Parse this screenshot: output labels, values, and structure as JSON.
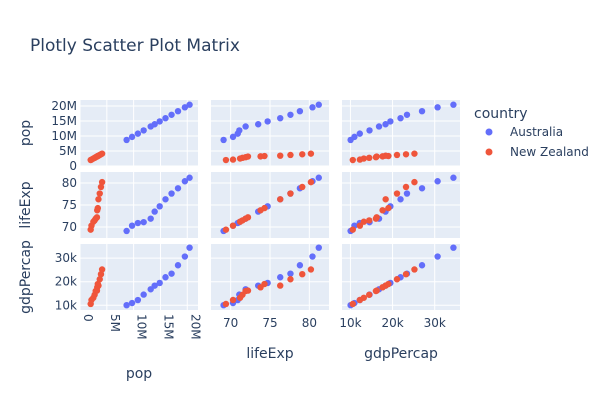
{
  "title": "Plotly Scatter Plot Matrix",
  "legend": {
    "title": "country",
    "placement": "top-right",
    "items": [
      {
        "name": "Australia",
        "color": "#636efa"
      },
      {
        "name": "New Zealand",
        "color": "#ef553b"
      }
    ]
  },
  "chart_data": {
    "type": "scatter",
    "title": "Plotly Scatter Plot Matrix",
    "dimensions": [
      {
        "name": "pop",
        "label": "pop",
        "range": [
          0,
          22000000
        ],
        "ticks": [
          {
            "v": 0,
            "t": "0"
          },
          {
            "v": 5000000,
            "t": "5M"
          },
          {
            "v": 10000000,
            "t": "10M"
          },
          {
            "v": 15000000,
            "t": "15M"
          },
          {
            "v": 20000000,
            "t": "20M"
          }
        ]
      },
      {
        "name": "lifeExp",
        "label": "lifeExp",
        "range": [
          67.5,
          82.5
        ],
        "ticks": [
          {
            "v": 70,
            "t": "70"
          },
          {
            "v": 75,
            "t": "75"
          },
          {
            "v": 80,
            "t": "80"
          }
        ]
      },
      {
        "name": "gdpPercap",
        "label": "gdpPercap",
        "range": [
          8000,
          36000
        ],
        "ticks": [
          {
            "v": 10000,
            "t": "10k"
          },
          {
            "v": 20000,
            "t": "20k"
          },
          {
            "v": 30000,
            "t": "30k"
          }
        ]
      }
    ],
    "series": [
      {
        "name": "Australia",
        "color": "#636efa",
        "pop": [
          8690000,
          9710000,
          10790000,
          11870000,
          13180000,
          13920000,
          14860000,
          15940000,
          17070000,
          18270000,
          19550000,
          20430000
        ],
        "lifeExp": [
          69.1,
          70.3,
          70.9,
          71.1,
          71.9,
          73.5,
          74.7,
          76.3,
          77.6,
          78.8,
          80.4,
          81.2
        ],
        "gdpPercap": [
          10040,
          10950,
          12220,
          14530,
          16790,
          18330,
          19480,
          21890,
          23420,
          26990,
          30690,
          34440
        ]
      },
      {
        "name": "New Zealand",
        "color": "#ef553b",
        "pop": [
          1990000,
          2140000,
          2490000,
          2730000,
          2930000,
          3160000,
          3210000,
          3320000,
          3440000,
          3680000,
          3910000,
          4120000
        ],
        "lifeExp": [
          69.4,
          70.3,
          71.2,
          71.5,
          71.9,
          72.2,
          73.8,
          74.3,
          76.3,
          77.6,
          79.1,
          80.2
        ],
        "gdpPercap": [
          10560,
          12250,
          13180,
          14460,
          16050,
          16230,
          17630,
          19010,
          18360,
          21050,
          23190,
          25190
        ]
      }
    ]
  }
}
